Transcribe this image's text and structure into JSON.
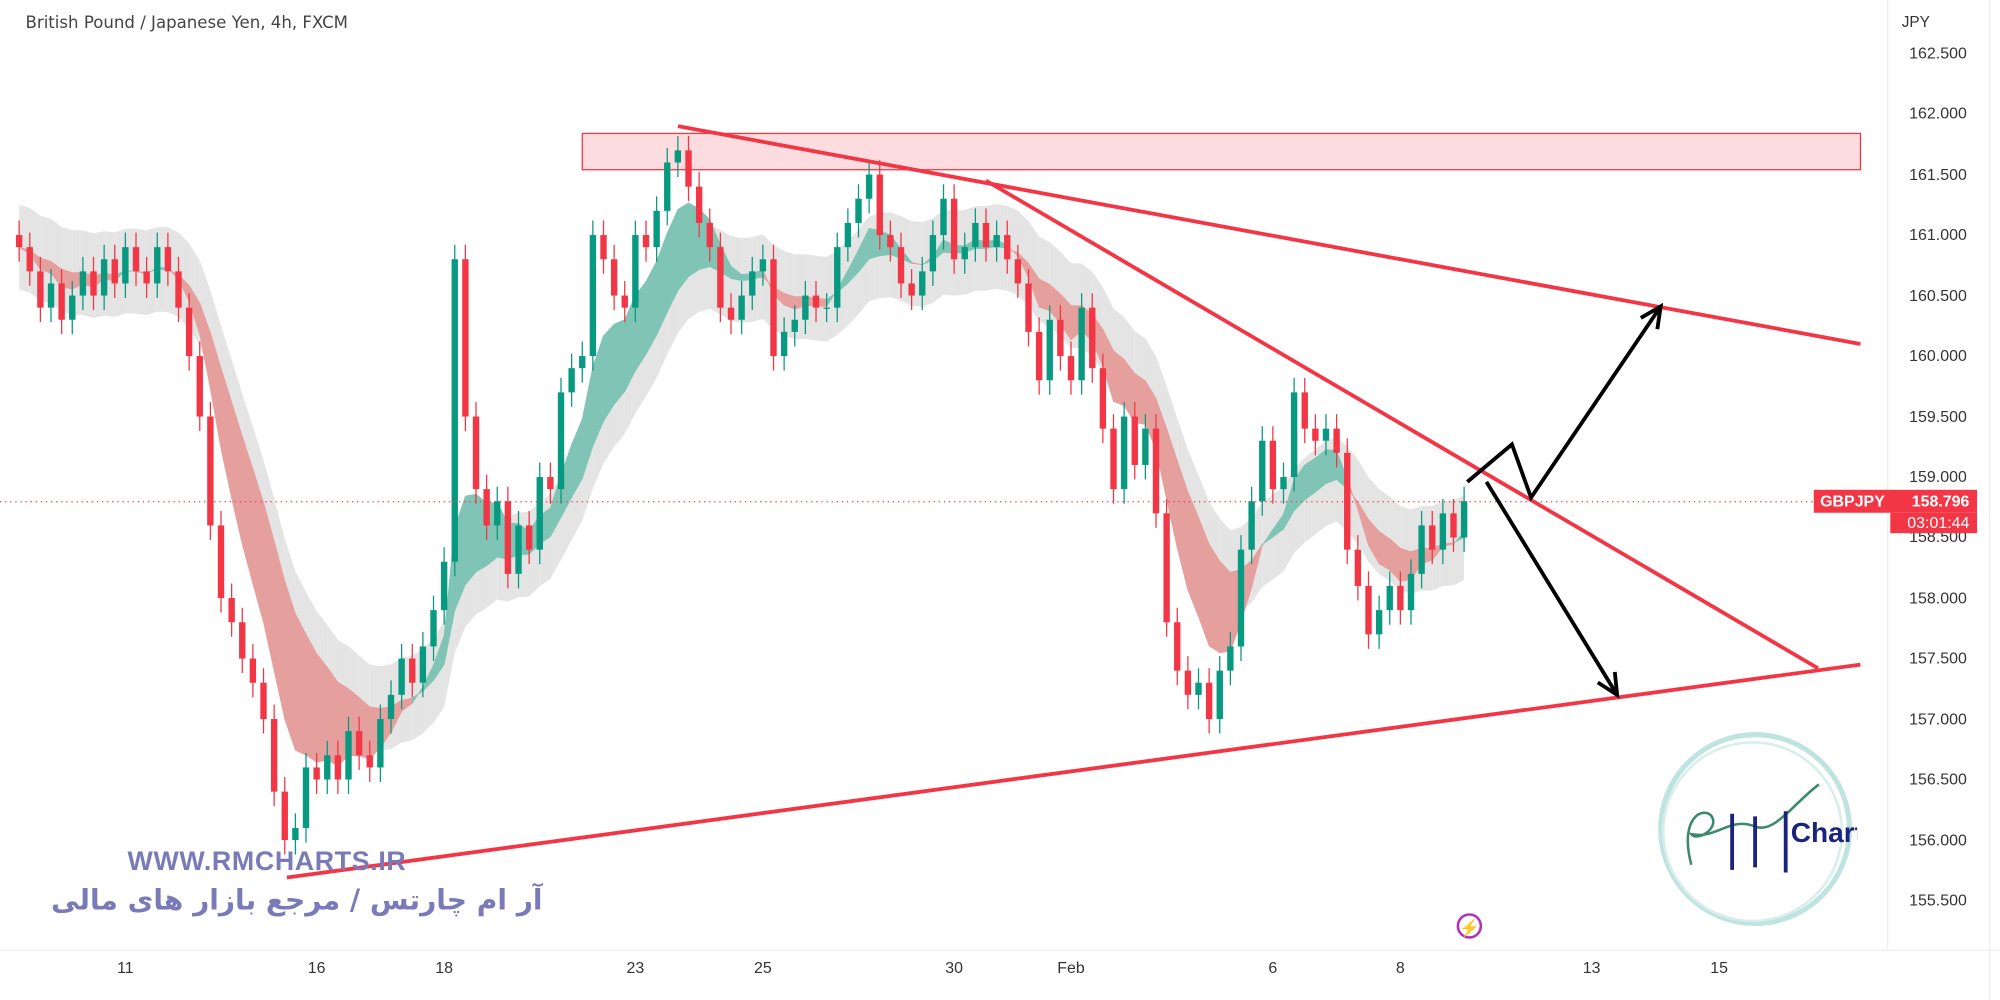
{
  "header": {
    "title": "British Pound / Japanese Yen, 4h, FXCM",
    "currency": "JPY"
  },
  "price_tag": {
    "symbol": "GBPJPY",
    "price": "158.796",
    "countdown": "03:01:44",
    "color": "#f23645"
  },
  "watermark": {
    "url": "WWW.RMCHARTS.IR",
    "tagline": "آر ام چارتس / مرجع بازار های مالی",
    "logo_text": "RM Charts"
  },
  "colors": {
    "up": "#089981",
    "down": "#f23645",
    "drawing": "#f23645",
    "arrow": "#000000",
    "zone": "#fbd3d6"
  },
  "icons": {
    "replay": "lightning-icon"
  },
  "chart_data": {
    "type": "candlestick",
    "title": "British Pound / Japanese Yen, 4h, FXCM",
    "ylim": [
      155.5,
      162.5
    ],
    "y_ticks": [
      "162.500",
      "162.000",
      "161.500",
      "161.000",
      "160.500",
      "160.000",
      "159.500",
      "159.000",
      "158.500",
      "158.000",
      "157.500",
      "157.000",
      "156.500",
      "156.000",
      "155.500"
    ],
    "x_ticks": [
      {
        "label": "11",
        "index": 10
      },
      {
        "label": "16",
        "index": 28
      },
      {
        "label": "18",
        "index": 40
      },
      {
        "label": "23",
        "index": 58
      },
      {
        "label": "25",
        "index": 70
      },
      {
        "label": "30",
        "index": 88
      },
      {
        "label": "Feb",
        "index": 99
      },
      {
        "label": "6",
        "index": 118
      },
      {
        "label": "8",
        "index": 130
      },
      {
        "label": "13",
        "index": 148
      },
      {
        "label": "15",
        "index": 160
      }
    ],
    "closes": [
      160.9,
      160.7,
      160.4,
      160.6,
      160.3,
      160.5,
      160.7,
      160.5,
      160.8,
      160.6,
      160.9,
      160.7,
      160.6,
      160.9,
      160.7,
      160.4,
      160.0,
      159.5,
      158.6,
      158.0,
      157.8,
      157.5,
      157.3,
      157.0,
      156.4,
      156.0,
      156.1,
      156.6,
      156.5,
      156.7,
      156.5,
      156.9,
      156.7,
      156.6,
      157.0,
      157.2,
      157.5,
      157.3,
      157.6,
      157.9,
      158.3,
      160.8,
      159.5,
      158.9,
      158.6,
      158.8,
      158.2,
      158.6,
      158.4,
      159.0,
      158.9,
      159.7,
      159.9,
      160.0,
      161.0,
      160.8,
      160.5,
      160.4,
      161.0,
      160.9,
      161.2,
      161.6,
      161.7,
      161.4,
      161.1,
      160.9,
      160.4,
      160.3,
      160.5,
      160.7,
      160.8,
      160.0,
      160.2,
      160.3,
      160.5,
      160.4,
      160.4,
      160.9,
      161.1,
      161.3,
      161.5,
      161.0,
      160.9,
      160.6,
      160.5,
      160.7,
      161.0,
      161.3,
      160.8,
      160.9,
      161.1,
      160.9,
      161.0,
      160.8,
      160.6,
      160.2,
      159.8,
      160.3,
      160.0,
      159.8,
      160.4,
      159.9,
      159.4,
      158.9,
      159.5,
      159.1,
      159.4,
      158.7,
      157.8,
      157.4,
      157.2,
      157.3,
      157.0,
      157.4,
      157.6,
      158.4,
      158.8,
      159.3,
      158.9,
      159.0,
      159.7,
      159.4,
      159.3,
      159.4,
      159.2,
      158.4,
      158.1,
      157.7,
      157.9,
      158.1,
      157.9,
      158.2,
      158.6,
      158.4,
      158.7,
      158.5,
      158.8
    ],
    "last_price": 158.796,
    "drawings": {
      "resistance_zone": {
        "from_index": 53,
        "to_index": 173.3,
        "low": 161.54,
        "high": 161.84
      },
      "trendlines": [
        {
          "name": "upper-descending",
          "from": [
            62,
            161.9
          ],
          "to": [
            173.3,
            160.1
          ]
        },
        {
          "name": "inner-descending",
          "from": [
            91,
            161.45
          ],
          "to": [
            169.3,
            157.42
          ]
        },
        {
          "name": "lower-ascending",
          "from": [
            25.2,
            155.69
          ],
          "to": [
            173.3,
            157.45
          ]
        }
      ],
      "arrows": [
        {
          "name": "bullish-scenario",
          "points": [
            [
              136.3,
              158.96
            ],
            [
              140.5,
              159.27
            ],
            [
              142.3,
              158.83
            ],
            [
              154.5,
              160.41
            ]
          ]
        },
        {
          "name": "bearish-scenario",
          "points": [
            [
              138.1,
              158.96
            ],
            [
              150.4,
              157.2
            ]
          ]
        }
      ]
    }
  }
}
